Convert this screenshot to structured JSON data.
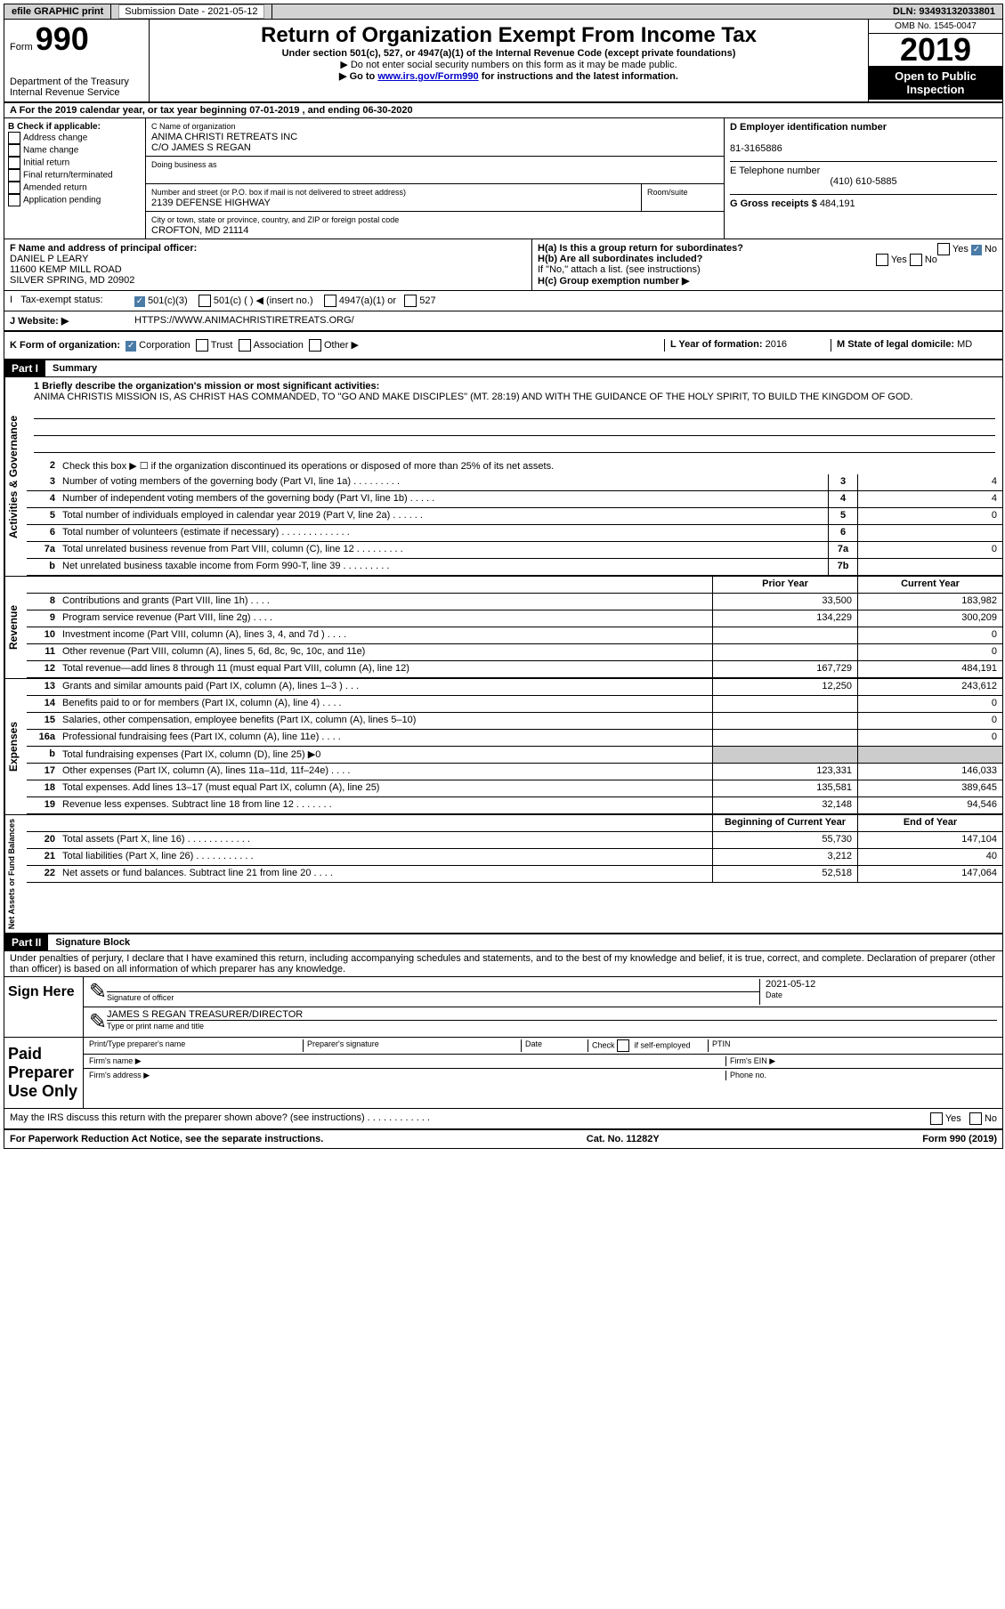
{
  "top_bar": {
    "efile": "efile GRAPHIC print",
    "submission_label": "Submission Date - 2021-05-12",
    "dln": "DLN: 93493132033801"
  },
  "header": {
    "form_label": "Form",
    "form_no": "990",
    "dept": "Department of the Treasury\nInternal Revenue Service",
    "title": "Return of Organization Exempt From Income Tax",
    "sub1": "Under section 501(c), 527, or 4947(a)(1) of the Internal Revenue Code (except private foundations)",
    "sub2": "▶ Do not enter social security numbers on this form as it may be made public.",
    "sub3_pre": "▶ Go to ",
    "sub3_link": "www.irs.gov/Form990",
    "sub3_post": " for instructions and the latest information.",
    "omb": "OMB No. 1545-0047",
    "year": "2019",
    "inspection": "Open to Public Inspection"
  },
  "row_a": "A  For the 2019 calendar year, or tax year beginning 07-01-2019    , and ending 06-30-2020",
  "box_b": {
    "label": "B Check if applicable:",
    "items": [
      "Address change",
      "Name change",
      "Initial return",
      "Final return/terminated",
      "Amended return",
      "Application pending"
    ]
  },
  "box_c": {
    "name_label": "C Name of organization",
    "name": "ANIMA CHRISTI RETREATS INC",
    "care_of": "C/O JAMES S REGAN",
    "dba_label": "Doing business as",
    "addr_label": "Number and street (or P.O. box if mail is not delivered to street address)",
    "room_label": "Room/suite",
    "addr": "2139 DEFENSE HIGHWAY",
    "city_label": "City or town, state or province, country, and ZIP or foreign postal code",
    "city": "CROFTON, MD  21114"
  },
  "box_d": {
    "ein_label": "D Employer identification number",
    "ein": "81-3165886",
    "phone_label": "E Telephone number",
    "phone": "(410) 610-5885",
    "gross_label": "G Gross receipts $",
    "gross": "484,191"
  },
  "box_f": {
    "label": "F  Name and address of principal officer:",
    "name": "DANIEL P LEARY",
    "addr1": "11600 KEMP MILL ROAD",
    "addr2": "SILVER SPRING, MD  20902"
  },
  "box_h": {
    "ha": "H(a)  Is this a group return for subordinates?",
    "hb": "H(b)  Are all subordinates included?",
    "hb_note": "If \"No,\" attach a list. (see instructions)",
    "hc": "H(c)  Group exemption number ▶"
  },
  "tax_status": {
    "label": "Tax-exempt status:",
    "opts": [
      "501(c)(3)",
      "501(c) (  ) ◀ (insert no.)",
      "4947(a)(1) or",
      "527"
    ]
  },
  "website": {
    "label": "J   Website: ▶",
    "value": "HTTPS://WWW.ANIMACHRISTIRETREATS.ORG/"
  },
  "row_k": {
    "label": "K Form of organization:",
    "opts": [
      "Corporation",
      "Trust",
      "Association",
      "Other ▶"
    ],
    "l_label": "L Year of formation:",
    "l_val": "2016",
    "m_label": "M State of legal domicile:",
    "m_val": "MD"
  },
  "part1": {
    "header": "Part I",
    "title": "Summary",
    "line1_label": "1  Briefly describe the organization's mission or most significant activities:",
    "mission": "ANIMA CHRISTIS MISSION IS, AS CHRIST HAS COMMANDED, TO \"GO AND MAKE DISCIPLES\" (MT. 28:19) AND WITH THE GUIDANCE OF THE HOLY SPIRIT, TO BUILD THE KINGDOM OF GOD.",
    "line2": "Check this box ▶ ☐  if the organization discontinued its operations or disposed of more than 25% of its net assets."
  },
  "side_labels": {
    "gov": "Activities & Governance",
    "rev": "Revenue",
    "exp": "Expenses",
    "net": "Net Assets or Fund Balances"
  },
  "gov_lines": [
    {
      "no": "3",
      "text": "Number of voting members of the governing body (Part VI, line 1a)  .    .    .    .    .    .    .    .    .",
      "box": "3",
      "val": "4"
    },
    {
      "no": "4",
      "text": "Number of independent voting members of the governing body (Part VI, line 1b)  .    .    .    .    .",
      "box": "4",
      "val": "4"
    },
    {
      "no": "5",
      "text": "Total number of individuals employed in calendar year 2019 (Part V, line 2a)  .    .    .    .    .    .",
      "box": "5",
      "val": "0"
    },
    {
      "no": "6",
      "text": "Total number of volunteers (estimate if necessary)    .    .    .    .    .    .    .    .    .    .    .    .    .",
      "box": "6",
      "val": ""
    },
    {
      "no": "7a",
      "text": "Total unrelated business revenue from Part VIII, column (C), line 12  .    .    .    .    .    .    .    .    .",
      "box": "7a",
      "val": "0"
    },
    {
      "no": "b",
      "text": "Net unrelated business taxable income from Form 990-T, line 39    .    .    .    .    .    .    .    .    .",
      "box": "7b",
      "val": ""
    }
  ],
  "col_headers": {
    "prior": "Prior Year",
    "current": "Current Year"
  },
  "rev_lines": [
    {
      "no": "8",
      "text": "Contributions and grants (Part VIII, line 1h)    .    .    .    .",
      "prior": "33,500",
      "curr": "183,982"
    },
    {
      "no": "9",
      "text": "Program service revenue (Part VIII, line 2g)    .    .    .    .",
      "prior": "134,229",
      "curr": "300,209"
    },
    {
      "no": "10",
      "text": "Investment income (Part VIII, column (A), lines 3, 4, and 7d )    .    .    .    .",
      "prior": "",
      "curr": "0"
    },
    {
      "no": "11",
      "text": "Other revenue (Part VIII, column (A), lines 5, 6d, 8c, 9c, 10c, and 11e)",
      "prior": "",
      "curr": "0"
    },
    {
      "no": "12",
      "text": "Total revenue—add lines 8 through 11 (must equal Part VIII, column (A), line 12)",
      "prior": "167,729",
      "curr": "484,191"
    }
  ],
  "exp_lines": [
    {
      "no": "13",
      "text": "Grants and similar amounts paid (Part IX, column (A), lines 1–3 )  .    .    .",
      "prior": "12,250",
      "curr": "243,612"
    },
    {
      "no": "14",
      "text": "Benefits paid to or for members (Part IX, column (A), line 4)  .    .    .    .",
      "prior": "",
      "curr": "0"
    },
    {
      "no": "15",
      "text": "Salaries, other compensation, employee benefits (Part IX, column (A), lines 5–10)",
      "prior": "",
      "curr": "0"
    },
    {
      "no": "16a",
      "text": "Professional fundraising fees (Part IX, column (A), line 11e)  .    .    .    .",
      "prior": "",
      "curr": "0"
    },
    {
      "no": "b",
      "text": "Total fundraising expenses (Part IX, column (D), line 25) ▶0",
      "prior": "SHADED",
      "curr": "SHADED"
    },
    {
      "no": "17",
      "text": "Other expenses (Part IX, column (A), lines 11a–11d, 11f–24e)  .    .    .    .",
      "prior": "123,331",
      "curr": "146,033"
    },
    {
      "no": "18",
      "text": "Total expenses. Add lines 13–17 (must equal Part IX, column (A), line 25)",
      "prior": "135,581",
      "curr": "389,645"
    },
    {
      "no": "19",
      "text": "Revenue less expenses. Subtract line 18 from line 12  .    .    .    .    .    .    .",
      "prior": "32,148",
      "curr": "94,546"
    }
  ],
  "net_headers": {
    "begin": "Beginning of Current Year",
    "end": "End of Year"
  },
  "net_lines": [
    {
      "no": "20",
      "text": "Total assets (Part X, line 16)  .    .    .    .    .    .    .    .    .    .    .    .",
      "prior": "55,730",
      "curr": "147,104"
    },
    {
      "no": "21",
      "text": "Total liabilities (Part X, line 26)  .    .    .    .    .    .    .    .    .    .    .",
      "prior": "3,212",
      "curr": "40"
    },
    {
      "no": "22",
      "text": "Net assets or fund balances. Subtract line 21 from line 20   .    .    .    .",
      "prior": "52,518",
      "curr": "147,064"
    }
  ],
  "part2": {
    "header": "Part II",
    "title": "Signature Block",
    "declaration": "Under penalties of perjury, I declare that I have examined this return, including accompanying schedules and statements, and to the best of my knowledge and belief, it is true, correct, and complete. Declaration of preparer (other than officer) is based on all information of which preparer has any knowledge."
  },
  "sign": {
    "left": "Sign Here",
    "sig_label": "Signature of officer",
    "date_label": "Date",
    "date": "2021-05-12",
    "name": "JAMES S REGAN  TREASURER/DIRECTOR",
    "name_label": "Type or print name and title"
  },
  "paid": {
    "left": "Paid Preparer Use Only",
    "h1": "Print/Type preparer's name",
    "h2": "Preparer's signature",
    "h3": "Date",
    "h4_pre": "Check",
    "h4_post": "if self-employed",
    "h5": "PTIN",
    "firm_name": "Firm's name    ▶",
    "firm_ein": "Firm's EIN ▶",
    "firm_addr": "Firm's address ▶",
    "phone": "Phone no."
  },
  "discuss": "May the IRS discuss this return with the preparer shown above? (see instructions)   .    .    .    .    .    .    .    .    .    .    .    .",
  "footer": {
    "left": "For Paperwork Reduction Act Notice, see the separate instructions.",
    "mid": "Cat. No. 11282Y",
    "right": "Form 990 (2019)"
  }
}
